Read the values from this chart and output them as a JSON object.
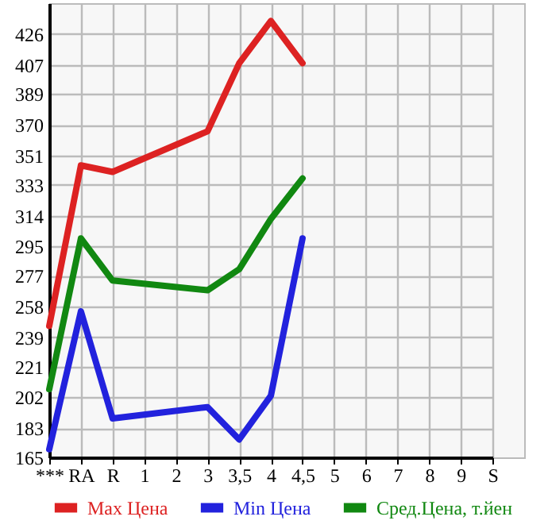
{
  "chart_data": {
    "type": "line",
    "categories": [
      "***",
      "RA",
      "R",
      "1",
      "2",
      "3",
      "3,5",
      "4",
      "4,5",
      "5",
      "6",
      "7",
      "8",
      "9",
      "S"
    ],
    "series": [
      {
        "name": "Max Цена",
        "color": "#dd2222",
        "values": [
          246,
          345,
          341,
          null,
          null,
          366,
          408,
          434,
          408,
          null,
          null,
          null,
          null,
          null,
          null
        ]
      },
      {
        "name": "Min Цена",
        "color": "#2222dd",
        "values": [
          170,
          255,
          189,
          null,
          null,
          196,
          176,
          203,
          300,
          null,
          null,
          null,
          null,
          null,
          null
        ]
      },
      {
        "name": "Сред.Цена, т.йен",
        "color": "#118811",
        "values": [
          207,
          300,
          274,
          null,
          null,
          268,
          281,
          312,
          337,
          null,
          null,
          null,
          null,
          null,
          null
        ]
      }
    ],
    "ylim": [
      165,
      445
    ],
    "yticks": [
      165,
      183,
      202,
      221,
      239,
      258,
      277,
      295,
      314,
      333,
      351,
      370,
      389,
      407,
      426
    ],
    "grid": true,
    "legend": "bottom",
    "marker": "none",
    "line_style": "solid"
  }
}
